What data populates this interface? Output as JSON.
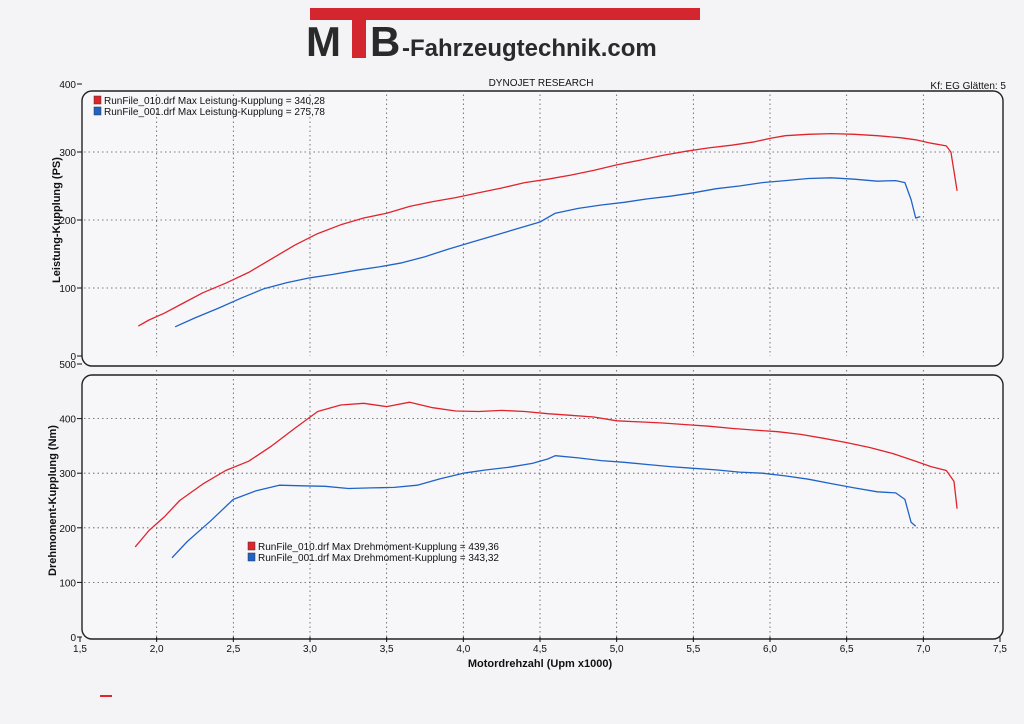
{
  "header": {
    "logo_text_1": "M",
    "logo_text_2": "B",
    "brand_suffix": "-Fahrzeugtechnik.com",
    "brand_color": "#d4262e",
    "brand_dark": "#2a2a2a"
  },
  "report": {
    "title": "DYNOJET RESEARCH",
    "settings": "Kf: EG  Glätten: 5"
  },
  "colors": {
    "run_010": "#e0242c",
    "run_001": "#1f63c8",
    "grid": "#555555",
    "panel_bg": "#f7f7fa"
  },
  "chart_data": [
    {
      "type": "line",
      "ylabel": "Leistung-Kupplung (PS)",
      "ylim": [
        0,
        400
      ],
      "yticks": [
        "0",
        "100",
        "200",
        "300",
        "400"
      ],
      "xlim": [
        1.5,
        7.5
      ],
      "grid": true,
      "legend_position": "top-left",
      "series": [
        {
          "name": "RunFile_010.drf Max Leistung-Kupplung = 340,28",
          "color_key": "run_010",
          "points": [
            [
              1.88,
              44
            ],
            [
              1.95,
              53
            ],
            [
              2.05,
              63
            ],
            [
              2.15,
              75
            ],
            [
              2.3,
              93
            ],
            [
              2.45,
              107
            ],
            [
              2.6,
              123
            ],
            [
              2.75,
              143
            ],
            [
              2.9,
              163
            ],
            [
              3.05,
              180
            ],
            [
              3.2,
              193
            ],
            [
              3.35,
              203
            ],
            [
              3.5,
              210
            ],
            [
              3.65,
              220
            ],
            [
              3.8,
              227
            ],
            [
              3.95,
              233
            ],
            [
              4.1,
              240
            ],
            [
              4.25,
              247
            ],
            [
              4.4,
              255
            ],
            [
              4.55,
              260
            ],
            [
              4.7,
              266
            ],
            [
              4.85,
              273
            ],
            [
              5.0,
              281
            ],
            [
              5.15,
              288
            ],
            [
              5.3,
              295
            ],
            [
              5.45,
              301
            ],
            [
              5.6,
              306
            ],
            [
              5.75,
              310
            ],
            [
              5.9,
              315
            ],
            [
              6.0,
              320
            ],
            [
              6.1,
              324
            ],
            [
              6.25,
              326
            ],
            [
              6.4,
              327
            ],
            [
              6.55,
              326
            ],
            [
              6.7,
              324
            ],
            [
              6.85,
              321
            ],
            [
              6.95,
              318
            ],
            [
              7.05,
              313
            ],
            [
              7.15,
              309
            ],
            [
              7.18,
              300
            ],
            [
              7.22,
              243
            ]
          ]
        },
        {
          "name": "RunFile_001.drf Max Leistung-Kupplung = 275,78",
          "color_key": "run_001",
          "points": [
            [
              2.12,
              43
            ],
            [
              2.25,
              56
            ],
            [
              2.4,
              70
            ],
            [
              2.55,
              85
            ],
            [
              2.7,
              99
            ],
            [
              2.85,
              108
            ],
            [
              3.0,
              115
            ],
            [
              3.15,
              120
            ],
            [
              3.3,
              126
            ],
            [
              3.45,
              131
            ],
            [
              3.6,
              137
            ],
            [
              3.75,
              146
            ],
            [
              3.9,
              157
            ],
            [
              4.05,
              167
            ],
            [
              4.2,
              177
            ],
            [
              4.35,
              187
            ],
            [
              4.5,
              197
            ],
            [
              4.6,
              210
            ],
            [
              4.75,
              217
            ],
            [
              4.9,
              222
            ],
            [
              5.05,
              226
            ],
            [
              5.2,
              231
            ],
            [
              5.35,
              235
            ],
            [
              5.5,
              240
            ],
            [
              5.65,
              246
            ],
            [
              5.8,
              250
            ],
            [
              5.95,
              255
            ],
            [
              6.1,
              258
            ],
            [
              6.25,
              261
            ],
            [
              6.4,
              262
            ],
            [
              6.55,
              260
            ],
            [
              6.7,
              257
            ],
            [
              6.82,
              258
            ],
            [
              6.88,
              255
            ],
            [
              6.92,
              230
            ],
            [
              6.95,
              203
            ],
            [
              6.98,
              205
            ]
          ]
        }
      ]
    },
    {
      "type": "line",
      "ylabel": "Drehmoment-Kupplung (Nm)",
      "xlabel": "Motordrehzahl (Upm x1000)",
      "ylim": [
        0,
        500
      ],
      "yticks": [
        "0",
        "100",
        "200",
        "300",
        "400",
        "500"
      ],
      "xlim": [
        1.5,
        7.5
      ],
      "xticks": [
        "1,5",
        "2,0",
        "2,5",
        "3,0",
        "3,5",
        "4,0",
        "4,5",
        "5,0",
        "5,5",
        "6,0",
        "6,5",
        "7,0",
        "7,5"
      ],
      "grid": true,
      "legend_position": "bottom-left",
      "series": [
        {
          "name": "RunFile_010.drf Max Drehmoment-Kupplung = 439,36",
          "color_key": "run_010",
          "points": [
            [
              1.86,
              165
            ],
            [
              1.95,
              195
            ],
            [
              2.05,
              220
            ],
            [
              2.15,
              250
            ],
            [
              2.3,
              280
            ],
            [
              2.45,
              305
            ],
            [
              2.6,
              322
            ],
            [
              2.75,
              350
            ],
            [
              2.9,
              382
            ],
            [
              3.05,
              413
            ],
            [
              3.2,
              425
            ],
            [
              3.35,
              428
            ],
            [
              3.5,
              422
            ],
            [
              3.65,
              430
            ],
            [
              3.8,
              420
            ],
            [
              3.95,
              414
            ],
            [
              4.1,
              413
            ],
            [
              4.25,
              415
            ],
            [
              4.4,
              413
            ],
            [
              4.55,
              409
            ],
            [
              4.7,
              406
            ],
            [
              4.85,
              403
            ],
            [
              5.0,
              396
            ],
            [
              5.15,
              394
            ],
            [
              5.3,
              392
            ],
            [
              5.45,
              389
            ],
            [
              5.6,
              386
            ],
            [
              5.75,
              382
            ],
            [
              5.9,
              379
            ],
            [
              6.05,
              376
            ],
            [
              6.2,
              371
            ],
            [
              6.35,
              364
            ],
            [
              6.5,
              356
            ],
            [
              6.65,
              347
            ],
            [
              6.8,
              336
            ],
            [
              6.95,
              322
            ],
            [
              7.05,
              312
            ],
            [
              7.15,
              305
            ],
            [
              7.2,
              285
            ],
            [
              7.22,
              235
            ]
          ]
        },
        {
          "name": "RunFile_001.drf Max Drehmoment-Kupplung = 343,32",
          "color_key": "run_001",
          "points": [
            [
              2.1,
              145
            ],
            [
              2.2,
              175
            ],
            [
              2.35,
              212
            ],
            [
              2.5,
              252
            ],
            [
              2.65,
              268
            ],
            [
              2.8,
              278
            ],
            [
              2.95,
              277
            ],
            [
              3.1,
              276
            ],
            [
              3.25,
              272
            ],
            [
              3.4,
              273
            ],
            [
              3.55,
              274
            ],
            [
              3.7,
              278
            ],
            [
              3.85,
              290
            ],
            [
              4.0,
              300
            ],
            [
              4.15,
              306
            ],
            [
              4.3,
              311
            ],
            [
              4.45,
              318
            ],
            [
              4.55,
              326
            ],
            [
              4.6,
              332
            ],
            [
              4.75,
              328
            ],
            [
              4.9,
              323
            ],
            [
              5.05,
              320
            ],
            [
              5.2,
              316
            ],
            [
              5.35,
              312
            ],
            [
              5.5,
              309
            ],
            [
              5.65,
              306
            ],
            [
              5.8,
              302
            ],
            [
              5.95,
              300
            ],
            [
              6.1,
              295
            ],
            [
              6.25,
              289
            ],
            [
              6.4,
              281
            ],
            [
              6.55,
              273
            ],
            [
              6.7,
              266
            ],
            [
              6.82,
              264
            ],
            [
              6.88,
              252
            ],
            [
              6.92,
              210
            ],
            [
              6.95,
              203
            ]
          ]
        }
      ]
    }
  ]
}
